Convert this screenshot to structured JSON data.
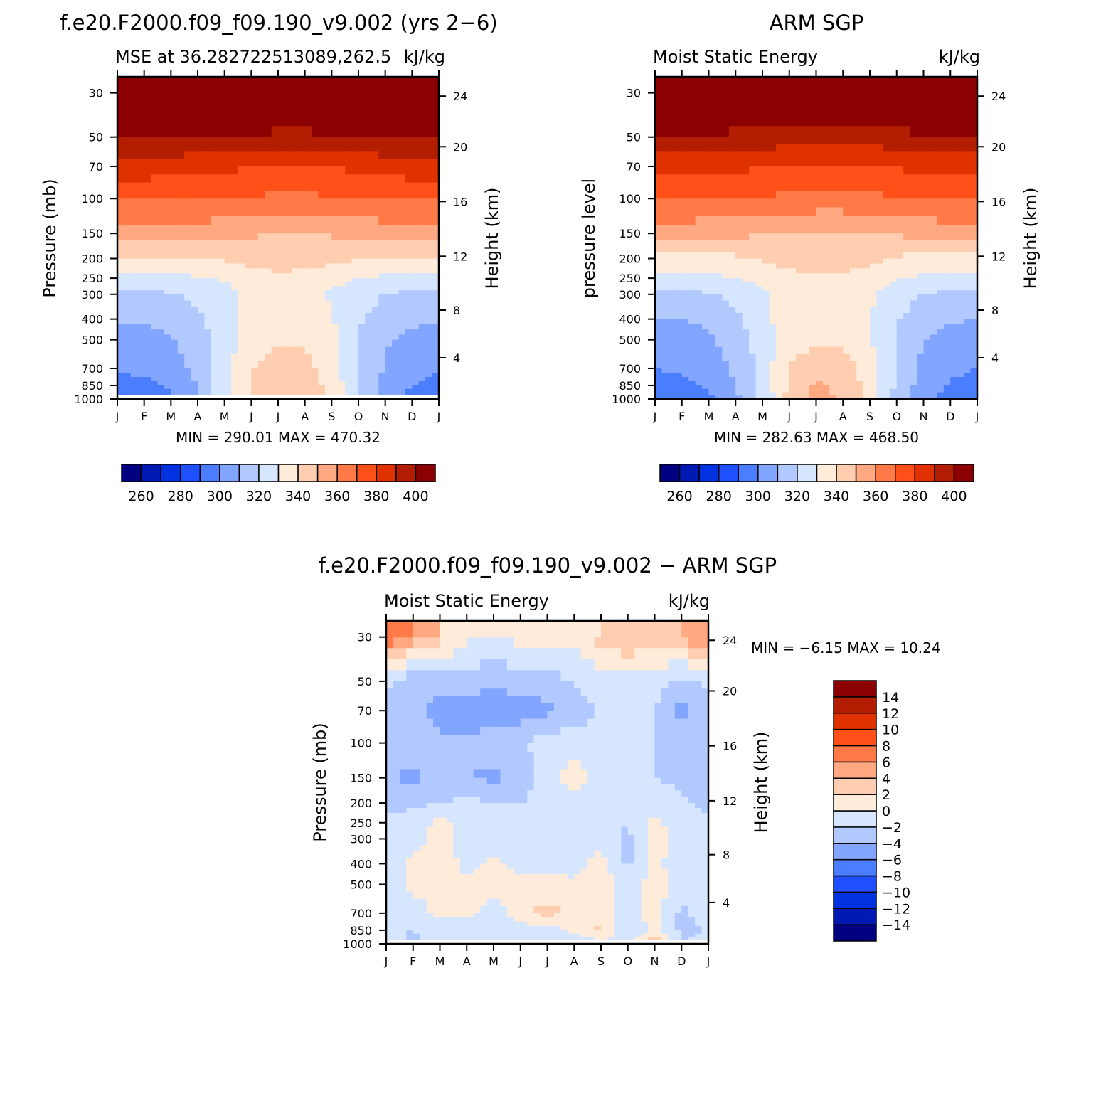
{
  "panels": [
    {
      "id": "model",
      "main_title": "f.e20.F2000.f09_f09.190_v9.002 (yrs 2−6)",
      "left_subtitle": "MSE at 36.282722513089,262.5",
      "right_subtitle": "kJ/kg",
      "ylabel": "Pressure (mb)",
      "ylabel_right": "Height (km)",
      "min_max": "MIN = 290.01 MAX = 470.32"
    },
    {
      "id": "obs",
      "main_title": "ARM SGP",
      "left_subtitle": "Moist Static Energy",
      "right_subtitle": "kJ/kg",
      "ylabel": "pressure level",
      "ylabel_right": "Height (km)",
      "min_max": "MIN = 282.63 MAX = 468.50"
    },
    {
      "id": "diff",
      "main_title": "f.e20.F2000.f09_f09.190_v9.002 − ARM SGP",
      "left_subtitle": "Moist Static Energy",
      "right_subtitle": "kJ/kg",
      "ylabel": "Pressure (mb)",
      "ylabel_right": "Height (km)",
      "min_max": "MIN =   −6.15 MAX =   10.24"
    }
  ],
  "months": [
    "J",
    "F",
    "M",
    "A",
    "M",
    "J",
    "J",
    "A",
    "S",
    "O",
    "N",
    "D",
    "J"
  ],
  "pressure_ticks": [
    "30",
    "50",
    "70",
    "100",
    "150",
    "200",
    "250",
    "300",
    "400",
    "500",
    "700",
    "850",
    "1000"
  ],
  "height_ticks": [
    "24",
    "20",
    "16",
    "12",
    "8",
    "4"
  ],
  "mse_colorbar": {
    "colors": [
      "#000080",
      "#0019b3",
      "#0032e0",
      "#1e50ff",
      "#4b7dff",
      "#82a5ff",
      "#b2c9ff",
      "#d6e6ff",
      "#ffebd9",
      "#ffcdb0",
      "#ffa882",
      "#ff7a47",
      "#ff5019",
      "#e03200",
      "#b41e00",
      "#8b0000"
    ],
    "labels": [
      "260",
      "280",
      "300",
      "320",
      "340",
      "360",
      "380",
      "400"
    ]
  },
  "diff_colorbar": {
    "colors": [
      "#000080",
      "#0019b3",
      "#0032e0",
      "#1e50ff",
      "#4b7dff",
      "#82a5ff",
      "#b2c9ff",
      "#d6e6ff",
      "#ffebd9",
      "#ffcdb0",
      "#ffa882",
      "#ff7a47",
      "#ff5019",
      "#e03200",
      "#b41e00",
      "#8b0000"
    ],
    "labels": [
      "−14",
      "−12",
      "−10",
      "−8",
      "−6",
      "−4",
      "−2",
      "0",
      "2",
      "4",
      "6",
      "8",
      "10",
      "12",
      "14"
    ]
  },
  "chart_data": [
    {
      "type": "heatmap",
      "title": "MSE at 36.282722513089,262.5",
      "units": "kJ/kg",
      "x": [
        "J",
        "F",
        "M",
        "A",
        "M",
        "J",
        "J",
        "A",
        "S",
        "O",
        "N",
        "D",
        "J"
      ],
      "y_pressure": [
        30,
        50,
        70,
        100,
        150,
        200,
        250,
        300,
        400,
        500,
        700,
        850,
        1000
      ],
      "levels": [
        260,
        270,
        280,
        290,
        300,
        310,
        320,
        330,
        340,
        350,
        360,
        370,
        380,
        390,
        400
      ],
      "values": [
        [
          420,
          420,
          420,
          420,
          420,
          420,
          420,
          420,
          420,
          420,
          420,
          420,
          420
        ],
        [
          402,
          402,
          401,
          400,
          399,
          398,
          397,
          397,
          398,
          399,
          401,
          402,
          402
        ],
        [
          385,
          385,
          384,
          383,
          382,
          381,
          380,
          380,
          381,
          382,
          384,
          385,
          385
        ],
        [
          372,
          372,
          371,
          371,
          370,
          369,
          368,
          368,
          369,
          370,
          371,
          372,
          372
        ],
        [
          355,
          355,
          354,
          354,
          353,
          351,
          350,
          350,
          351,
          352,
          354,
          355,
          355
        ],
        [
          338,
          338,
          338,
          339,
          341,
          345,
          346,
          346,
          343,
          341,
          339,
          338,
          338
        ],
        [
          328,
          328,
          328,
          329,
          331,
          334,
          337,
          336,
          333,
          330,
          328,
          328,
          328
        ],
        [
          318,
          318,
          319,
          322,
          327,
          332,
          334,
          333,
          329,
          324,
          320,
          318,
          318
        ],
        [
          311,
          311,
          313,
          318,
          327,
          334,
          338,
          336,
          331,
          322,
          315,
          312,
          311
        ],
        [
          306,
          307,
          309,
          315,
          325,
          335,
          339,
          338,
          332,
          319,
          311,
          307,
          306
        ],
        [
          301,
          302,
          305,
          313,
          326,
          340,
          345,
          343,
          335,
          320,
          309,
          303,
          301
        ],
        [
          297,
          298,
          301,
          310,
          326,
          341,
          347,
          345,
          337,
          319,
          307,
          300,
          297
        ],
        [
          294,
          295,
          299,
          309,
          327,
          342,
          348,
          346,
          338,
          319,
          305,
          297,
          294
        ]
      ],
      "min": 290.01,
      "max": 470.32
    },
    {
      "type": "heatmap",
      "title": "ARM SGP Moist Static Energy",
      "units": "kJ/kg",
      "x": [
        "J",
        "F",
        "M",
        "A",
        "M",
        "J",
        "J",
        "A",
        "S",
        "O",
        "N",
        "D",
        "J"
      ],
      "y_pressure": [
        30,
        50,
        70,
        100,
        150,
        200,
        250,
        300,
        400,
        500,
        700,
        850,
        1000
      ],
      "levels": [
        260,
        270,
        280,
        290,
        300,
        310,
        320,
        330,
        340,
        350,
        360,
        370,
        380,
        390,
        400
      ],
      "values": [
        [
          420,
          420,
          420,
          420,
          420,
          420,
          420,
          420,
          420,
          420,
          420,
          420,
          420
        ],
        [
          399,
          399,
          398,
          397,
          396,
          395,
          394,
          394,
          395,
          396,
          398,
          399,
          399
        ],
        [
          384,
          384,
          383,
          382,
          381,
          380,
          379,
          379,
          380,
          381,
          383,
          384,
          384
        ],
        [
          371,
          371,
          370,
          370,
          369,
          368,
          367,
          367,
          368,
          369,
          370,
          371,
          371
        ],
        [
          354,
          354,
          353,
          352,
          351,
          349,
          348,
          348,
          349,
          351,
          353,
          354,
          354
        ],
        [
          336,
          336,
          337,
          338,
          341,
          345,
          348,
          347,
          343,
          339,
          337,
          336,
          336
        ],
        [
          328,
          328,
          328,
          330,
          333,
          336,
          338,
          337,
          334,
          331,
          328,
          328,
          328
        ],
        [
          318,
          318,
          319,
          323,
          328,
          334,
          337,
          336,
          331,
          325,
          320,
          318,
          318
        ],
        [
          310,
          310,
          312,
          318,
          327,
          336,
          339,
          338,
          331,
          321,
          314,
          311,
          310
        ],
        [
          305,
          306,
          308,
          315,
          324,
          334,
          338,
          337,
          331,
          319,
          311,
          306,
          305
        ],
        [
          300,
          301,
          304,
          312,
          324,
          341,
          346,
          345,
          335,
          319,
          307,
          302,
          300
        ],
        [
          297,
          298,
          301,
          310,
          323,
          342,
          351,
          348,
          336,
          318,
          305,
          299,
          297
        ],
        [
          293,
          294,
          298,
          308,
          322,
          343,
          352,
          349,
          337,
          317,
          303,
          296,
          293
        ]
      ],
      "min": 282.63,
      "max": 468.5
    },
    {
      "type": "heatmap",
      "title": "f.e20.F2000.f09_f09.190_v9.002 − ARM SGP",
      "units": "kJ/kg",
      "x": [
        "J",
        "F",
        "M",
        "A",
        "M",
        "J",
        "J",
        "A",
        "S",
        "O",
        "N",
        "D",
        "J"
      ],
      "y_pressure": [
        30,
        50,
        70,
        100,
        150,
        200,
        250,
        300,
        400,
        500,
        700,
        850,
        1000
      ],
      "levels": [
        -14,
        -12,
        -10,
        -8,
        -6,
        -4,
        -2,
        0,
        2,
        4,
        6,
        8,
        10,
        12,
        14
      ],
      "values": [
        [
          7.5,
          5,
          3,
          0.5,
          -0.5,
          1,
          1,
          0.5,
          3,
          4,
          2.5,
          4,
          7.5
        ],
        [
          -1.5,
          -4,
          -3,
          -3,
          -3.5,
          -3,
          -3,
          -2,
          -1,
          -1,
          -1,
          -3,
          -1.5
        ],
        [
          -2.5,
          -3,
          -5,
          -5,
          -5.5,
          -5,
          -4.5,
          -3,
          -2,
          -1,
          -2,
          -4.5,
          -2.5
        ],
        [
          -2.5,
          -2.5,
          -3.5,
          -3.5,
          -3,
          -2.5,
          -1,
          -1,
          -1,
          -1,
          -2,
          -3,
          -2.5
        ],
        [
          -4,
          -4.5,
          -3,
          -4,
          -4.5,
          -3,
          -1,
          1,
          -1,
          -2,
          -2,
          -2.5,
          -4
        ],
        [
          -2.5,
          -2.5,
          -2,
          -1.5,
          -2,
          -2,
          -1.5,
          -1,
          -1.5,
          -1,
          -1,
          -1.5,
          -2.5
        ],
        [
          -1.5,
          -1,
          0.5,
          -0.5,
          -1,
          -1.5,
          -1,
          -1,
          -1,
          -2,
          0.5,
          -1,
          -1.5
        ],
        [
          -1,
          -1,
          1,
          -1,
          -1,
          -1,
          -1,
          -1,
          -1,
          -2.5,
          1,
          -1,
          -1
        ],
        [
          -1,
          0.5,
          1,
          -0.5,
          0.5,
          -0.5,
          -0.5,
          -1,
          1,
          -2.5,
          0.5,
          -1,
          -1
        ],
        [
          -1,
          0.5,
          0.5,
          0.5,
          1,
          0.5,
          0.5,
          0.5,
          1,
          -1,
          1,
          -1,
          -1
        ],
        [
          -1,
          -1,
          0.5,
          0.5,
          -1,
          1,
          3,
          1,
          1.5,
          -1,
          1,
          -2.5,
          -1
        ],
        [
          -2,
          -2,
          -1,
          -1,
          -1,
          -1,
          -1,
          0.5,
          2.5,
          -2.5,
          1,
          -2.5,
          -2
        ],
        [
          -1,
          -2.5,
          -1,
          -1,
          -1,
          -1.5,
          -2,
          -2,
          -1,
          -1,
          4,
          -2,
          -1
        ]
      ],
      "min": -6.15,
      "max": 10.24
    }
  ]
}
